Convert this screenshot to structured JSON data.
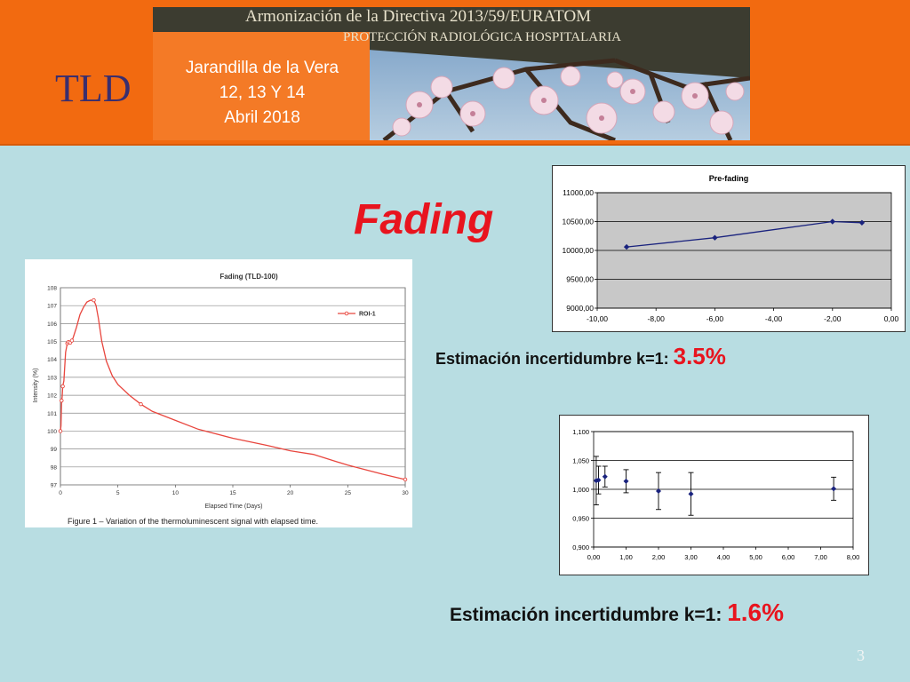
{
  "banner": {
    "title_line1": "Armonización de la Directiva 2013/59/EURATOM",
    "title_line2": "PROTECCIÓN RADIOLÓGICA HOSPITALARIA",
    "acronym": "TLD",
    "location": "Jarandilla de la Vera",
    "dates": "12, 13 Y 14",
    "month_year": "Abril 2018"
  },
  "slide": {
    "heading": "Fading",
    "est1_label": "Estimación incertidumbre k=1:",
    "est1_value": "3.5%",
    "est2_label": "Estimación incertidumbre k=1:",
    "est2_value": "1.6%",
    "page_number": "3"
  },
  "chart_data": [
    {
      "type": "line",
      "title": "Fading (TLD-100)",
      "xlabel": "Elapsed Time (Days)",
      "ylabel": "Intensity (%)",
      "caption": "Figure 1 – Variation of the thermoluminescent signal with elapsed time.",
      "xlim": [
        0,
        30
      ],
      "ylim": [
        97,
        108
      ],
      "xticks": [
        "0",
        "5",
        "10",
        "15",
        "20",
        "25",
        "30"
      ],
      "yticks": [
        "97",
        "98",
        "99",
        "100",
        "101",
        "102",
        "103",
        "104",
        "105",
        "106",
        "107",
        "108"
      ],
      "grid": true,
      "legend_position": "top-right",
      "series": [
        {
          "name": "ROI-1",
          "color": "#e8463e",
          "x": [
            0.0,
            0.05,
            0.1,
            0.15,
            0.2,
            0.3,
            0.45,
            0.6,
            0.75,
            0.9,
            1.1,
            1.4,
            1.7,
            2.0,
            2.3,
            2.6,
            2.9,
            3.1,
            3.3,
            3.6,
            4.0,
            4.5,
            5.0,
            6.0,
            7.0,
            8.0,
            10.0,
            12.0,
            15.0,
            18.0,
            20.0,
            22.0,
            25.0,
            28.0,
            30.0
          ],
          "y": [
            100.0,
            100.3,
            101.7,
            101.9,
            102.5,
            102.8,
            104.4,
            104.9,
            105.0,
            104.9,
            105.2,
            105.8,
            106.5,
            106.9,
            107.2,
            107.3,
            107.3,
            107.0,
            106.3,
            105.0,
            103.9,
            103.1,
            102.6,
            102.0,
            101.5,
            101.1,
            100.6,
            100.1,
            99.6,
            99.2,
            98.9,
            98.7,
            98.1,
            97.6,
            97.3
          ],
          "markers_x": [
            0.0,
            0.1,
            0.2,
            0.6,
            0.7,
            0.85,
            1.0,
            2.9,
            7.0,
            30.0
          ]
        }
      ]
    },
    {
      "type": "line",
      "title": "Pre-fading",
      "xlim": [
        -10,
        0
      ],
      "ylim": [
        9000,
        11000
      ],
      "xticks": [
        "-10,00",
        "-8,00",
        "-6,00",
        "-4,00",
        "-2,00",
        "0,00"
      ],
      "yticks": [
        "9000,00",
        "9500,00",
        "10000,00",
        "10500,00",
        "11000,00"
      ],
      "grid": true,
      "series": [
        {
          "color": "#1a237e",
          "x": [
            -9.0,
            -6.0,
            -2.0,
            -1.0
          ],
          "y": [
            10060,
            10220,
            10500,
            10480
          ]
        }
      ]
    },
    {
      "type": "scatter",
      "xlim": [
        0,
        8
      ],
      "ylim": [
        0.9,
        1.1
      ],
      "xticks": [
        "0,00",
        "1,00",
        "2,00",
        "3,00",
        "4,00",
        "5,00",
        "6,00",
        "7,00",
        "8,00"
      ],
      "yticks": [
        "0,900",
        "0,950",
        "1,000",
        "1,050",
        "1,100"
      ],
      "grid": true,
      "series": [
        {
          "color": "#1a237e",
          "x": [
            0.08,
            0.15,
            0.35,
            1.0,
            2.0,
            3.0,
            7.4
          ],
          "y": [
            1.015,
            1.016,
            1.022,
            1.014,
            0.997,
            0.992,
            1.001
          ],
          "error": [
            0.042,
            0.024,
            0.018,
            0.02,
            0.032,
            0.037,
            0.02
          ]
        }
      ]
    }
  ],
  "colors": {
    "background": "#b8dde2",
    "banner_orange": "#f26a10",
    "accent_red": "#e8141e",
    "series_blue": "#1a237e"
  }
}
